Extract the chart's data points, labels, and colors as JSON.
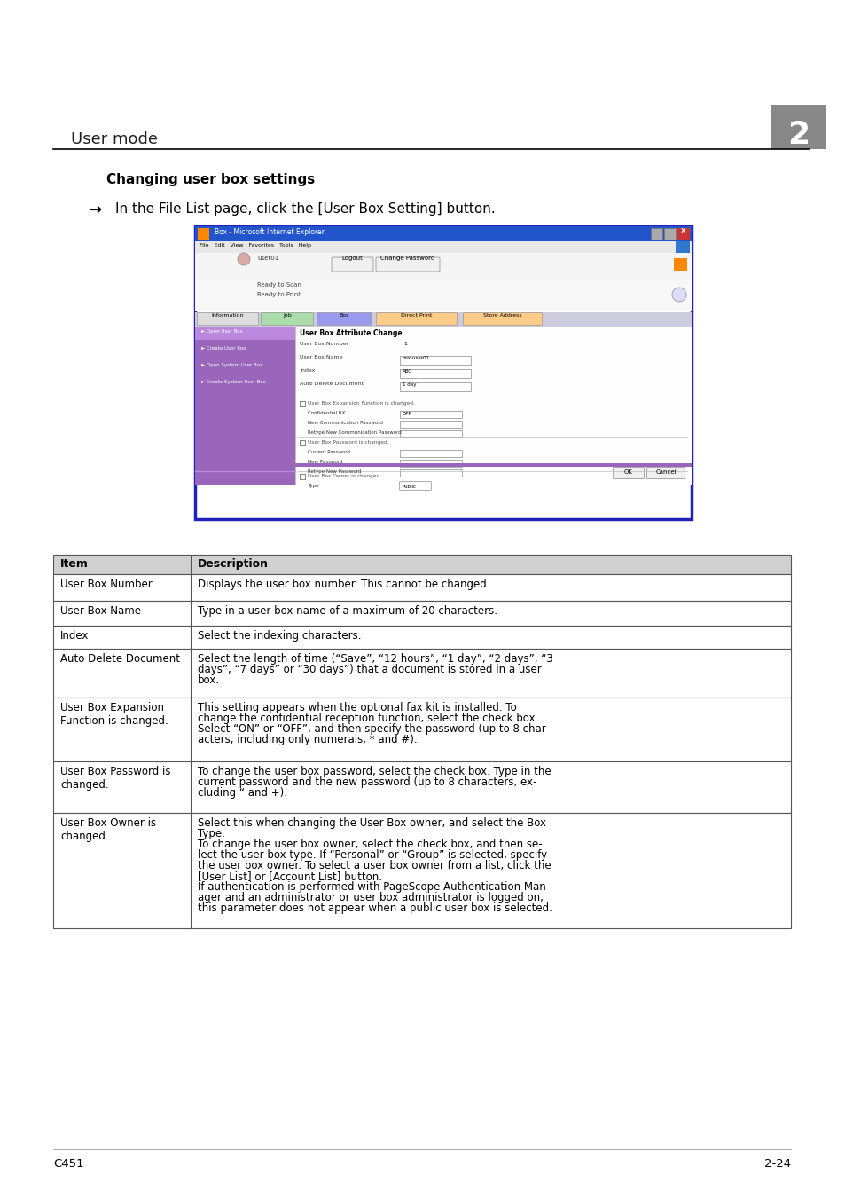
{
  "page_bg": "#ffffff",
  "header_text": "User mode",
  "header_num": "2",
  "section_title": "Changing user box settings",
  "arrow_text": "→",
  "instruction_text": "In the File List page, click the [User Box Setting] button.",
  "footer_left": "C451",
  "footer_right": "2-24",
  "table_headers": [
    "Item",
    "Description"
  ],
  "table_rows": [
    [
      "User Box Number",
      "Displays the user box number. This cannot be changed."
    ],
    [
      "User Box Name",
      "Type in a user box name of a maximum of 20 characters."
    ],
    [
      "Index",
      "Select the indexing characters."
    ],
    [
      "Auto Delete Document",
      "Select the length of time (“Save”, “12 hours”, “1 day”, “2 days”, “3\ndays”, “7 days” or “30 days”) that a document is stored in a user\nbox."
    ],
    [
      "User Box Expansion\nFunction is changed.",
      "This setting appears when the optional fax kit is installed. To\nchange the confidential reception function, select the check box.\nSelect “ON” or “OFF”, and then specify the password (up to 8 char-\nacters, including only numerals, * and #)."
    ],
    [
      "User Box Password is\nchanged.",
      "To change the user box password, select the check box. Type in the\ncurrent password and the new password (up to 8 characters, ex-\ncluding “ and +)."
    ],
    [
      "User Box Owner is\nchanged.",
      "Select this when changing the User Box owner, and select the Box\nType.\nTo change the user box owner, select the check box, and then se-\nlect the user box type. If “Personal” or “Group” is selected, specify\nthe user box owner. To select a user box owner from a list, click the\n[User List] or [Account List] button.\nIf authentication is performed with PageScope Authentication Man-\nager and an administrator or user box administrator is logged on,\nthis parameter does not appear when a public user box is selected."
    ]
  ],
  "header_line_color": "#000000",
  "table_header_bg": "#d0d0d0",
  "table_border_color": "#555555",
  "num_box_bg": "#888888",
  "num_box_color": "#ffffff"
}
